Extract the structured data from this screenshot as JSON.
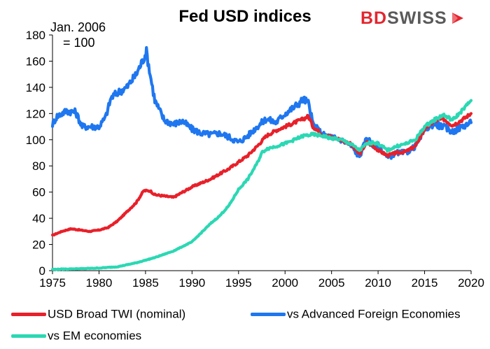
{
  "title": "Fed USD indices",
  "annotation": {
    "line1": "Jan. 2006",
    "line2": "= 100"
  },
  "logo": {
    "bd": "BD",
    "swiss": "SWISS"
  },
  "colors": {
    "broad": "#e8202a",
    "afe": "#1f77f0",
    "em": "#2bd8b3",
    "logo_red": "#e3262e",
    "logo_gray": "#5a5a5a"
  },
  "chart_data": {
    "type": "line",
    "title": "Fed USD indices",
    "xlim": [
      1975,
      2020
    ],
    "ylim": [
      0,
      180
    ],
    "x_ticks": [
      "1975",
      "1980",
      "1985",
      "1990",
      "1995",
      "2000",
      "2005",
      "2010",
      "2015",
      "2020"
    ],
    "y_ticks": [
      "0",
      "20",
      "40",
      "60",
      "80",
      "100",
      "120",
      "140",
      "160",
      "180"
    ],
    "grid": false,
    "legend": "bottom",
    "series": [
      {
        "name": "USD Broad TWI (nominal)",
        "color_key": "broad",
        "points": [
          [
            1975,
            27
          ],
          [
            1976,
            30
          ],
          [
            1977,
            32
          ],
          [
            1978,
            31
          ],
          [
            1979,
            30
          ],
          [
            1980,
            31
          ],
          [
            1981,
            33
          ],
          [
            1982,
            38
          ],
          [
            1983,
            45
          ],
          [
            1984,
            52
          ],
          [
            1984.8,
            61
          ],
          [
            1985.5,
            61
          ],
          [
            1986,
            58
          ],
          [
            1987,
            57
          ],
          [
            1988,
            56
          ],
          [
            1989,
            60
          ],
          [
            1990,
            64
          ],
          [
            1991,
            67
          ],
          [
            1992,
            70
          ],
          [
            1993,
            74
          ],
          [
            1994,
            78
          ],
          [
            1995,
            83
          ],
          [
            1996,
            88
          ],
          [
            1997,
            95
          ],
          [
            1998,
            103
          ],
          [
            1999,
            107
          ],
          [
            2000,
            110
          ],
          [
            2001,
            113
          ],
          [
            2002,
            116
          ],
          [
            2002.5,
            118
          ],
          [
            2003,
            110
          ],
          [
            2004,
            104
          ],
          [
            2005,
            102
          ],
          [
            2006,
            100
          ],
          [
            2007,
            97
          ],
          [
            2008,
            89
          ],
          [
            2008.8,
            98
          ],
          [
            2009.5,
            95
          ],
          [
            2010,
            92
          ],
          [
            2011,
            88
          ],
          [
            2012,
            90
          ],
          [
            2013,
            91
          ],
          [
            2014,
            95
          ],
          [
            2015,
            108
          ],
          [
            2016,
            114
          ],
          [
            2017,
            116
          ],
          [
            2018,
            111
          ],
          [
            2019,
            115
          ],
          [
            2020,
            120
          ]
        ]
      },
      {
        "name": "vs Advanced Foreign Economies",
        "color_key": "afe",
        "points": [
          [
            1975,
            112
          ],
          [
            1975.5,
            118
          ],
          [
            1976.5,
            122
          ],
          [
            1977.5,
            121
          ],
          [
            1978.2,
            110
          ],
          [
            1979,
            110
          ],
          [
            1980,
            110
          ],
          [
            1980.7,
            117
          ],
          [
            1981.3,
            132
          ],
          [
            1982,
            136
          ],
          [
            1983,
            140
          ],
          [
            1984,
            150
          ],
          [
            1984.8,
            162
          ],
          [
            1985.1,
            167
          ],
          [
            1985.5,
            150
          ],
          [
            1986,
            130
          ],
          [
            1987,
            115
          ],
          [
            1988,
            112
          ],
          [
            1989,
            114
          ],
          [
            1990,
            108
          ],
          [
            1991,
            105
          ],
          [
            1992,
            104
          ],
          [
            1993,
            105
          ],
          [
            1994,
            102
          ],
          [
            1995,
            98
          ],
          [
            1996,
            103
          ],
          [
            1997,
            110
          ],
          [
            1998,
            116
          ],
          [
            1999,
            113
          ],
          [
            2000,
            120
          ],
          [
            2001,
            125
          ],
          [
            2002,
            131
          ],
          [
            2002.5,
            128
          ],
          [
            2003,
            112
          ],
          [
            2004,
            104
          ],
          [
            2005,
            102
          ],
          [
            2006,
            100
          ],
          [
            2007,
            96
          ],
          [
            2008,
            87
          ],
          [
            2008.8,
            102
          ],
          [
            2009.5,
            95
          ],
          [
            2010,
            96
          ],
          [
            2011,
            86
          ],
          [
            2012,
            90
          ],
          [
            2013,
            90
          ],
          [
            2014,
            95
          ],
          [
            2015,
            108
          ],
          [
            2016,
            112
          ],
          [
            2017,
            110
          ],
          [
            2018,
            106
          ],
          [
            2019,
            110
          ],
          [
            2020,
            113
          ]
        ]
      },
      {
        "name": "vs EM economies",
        "color_key": "em",
        "points": [
          [
            1975,
            1
          ],
          [
            1978,
            1.5
          ],
          [
            1980,
            2
          ],
          [
            1982,
            3
          ],
          [
            1984,
            6
          ],
          [
            1986,
            10
          ],
          [
            1988,
            15
          ],
          [
            1990,
            22
          ],
          [
            1991,
            29
          ],
          [
            1992,
            36
          ],
          [
            1993,
            42
          ],
          [
            1994,
            50
          ],
          [
            1995,
            62
          ],
          [
            1996,
            70
          ],
          [
            1997,
            82
          ],
          [
            1997.5,
            90
          ],
          [
            1998,
            93
          ],
          [
            2000,
            97
          ],
          [
            2001,
            100
          ],
          [
            2002,
            103
          ],
          [
            2003,
            104
          ],
          [
            2004,
            103
          ],
          [
            2005,
            101
          ],
          [
            2006,
            100
          ],
          [
            2007,
            97
          ],
          [
            2008,
            92
          ],
          [
            2008.8,
            97
          ],
          [
            2009.5,
            98
          ],
          [
            2010,
            97
          ],
          [
            2011,
            92
          ],
          [
            2012,
            95
          ],
          [
            2013,
            97
          ],
          [
            2014,
            100
          ],
          [
            2015,
            110
          ],
          [
            2016,
            115
          ],
          [
            2017,
            119
          ],
          [
            2018,
            115
          ],
          [
            2019,
            122
          ],
          [
            2020,
            130
          ]
        ]
      }
    ]
  }
}
